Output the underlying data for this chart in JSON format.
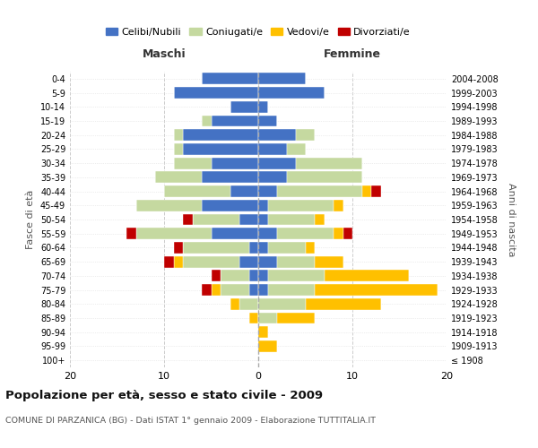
{
  "age_groups": [
    "100+",
    "95-99",
    "90-94",
    "85-89",
    "80-84",
    "75-79",
    "70-74",
    "65-69",
    "60-64",
    "55-59",
    "50-54",
    "45-49",
    "40-44",
    "35-39",
    "30-34",
    "25-29",
    "20-24",
    "15-19",
    "10-14",
    "5-9",
    "0-4"
  ],
  "birth_years": [
    "≤ 1908",
    "1909-1913",
    "1914-1918",
    "1919-1923",
    "1924-1928",
    "1929-1933",
    "1934-1938",
    "1939-1943",
    "1944-1948",
    "1949-1953",
    "1954-1958",
    "1959-1963",
    "1964-1968",
    "1969-1973",
    "1974-1978",
    "1979-1983",
    "1984-1988",
    "1989-1993",
    "1994-1998",
    "1999-2003",
    "2004-2008"
  ],
  "colors": {
    "celibi": "#4472c4",
    "coniugati": "#c5d9a0",
    "vedovi": "#ffc000",
    "divorziati": "#c00000"
  },
  "maschi": {
    "celibi": [
      0,
      0,
      0,
      0,
      0,
      1,
      1,
      2,
      1,
      5,
      2,
      6,
      3,
      6,
      5,
      8,
      8,
      5,
      3,
      9,
      6
    ],
    "coniugati": [
      0,
      0,
      0,
      0,
      2,
      3,
      3,
      6,
      7,
      8,
      5,
      7,
      7,
      5,
      4,
      1,
      1,
      1,
      0,
      0,
      0
    ],
    "vedovi": [
      0,
      0,
      0,
      1,
      1,
      1,
      0,
      1,
      0,
      0,
      0,
      0,
      0,
      0,
      0,
      0,
      0,
      0,
      0,
      0,
      0
    ],
    "divorziati": [
      0,
      0,
      0,
      0,
      0,
      1,
      1,
      1,
      1,
      1,
      1,
      0,
      0,
      0,
      0,
      0,
      0,
      0,
      0,
      0,
      0
    ]
  },
  "femmine": {
    "nubili": [
      0,
      0,
      0,
      0,
      0,
      1,
      1,
      2,
      1,
      2,
      1,
      1,
      2,
      3,
      4,
      3,
      4,
      2,
      1,
      7,
      5
    ],
    "coniugate": [
      0,
      0,
      0,
      2,
      5,
      5,
      6,
      4,
      4,
      6,
      5,
      7,
      9,
      8,
      7,
      2,
      2,
      0,
      0,
      0,
      0
    ],
    "vedove": [
      0,
      2,
      1,
      4,
      8,
      13,
      9,
      3,
      1,
      1,
      1,
      1,
      1,
      0,
      0,
      0,
      0,
      0,
      0,
      0,
      0
    ],
    "divorziate": [
      0,
      0,
      0,
      0,
      0,
      0,
      0,
      0,
      0,
      1,
      0,
      0,
      1,
      0,
      0,
      0,
      0,
      0,
      0,
      0,
      0
    ]
  },
  "title": "Popolazione per età, sesso e stato civile - 2009",
  "subtitle": "COMUNE DI PARZANICA (BG) - Dati ISTAT 1° gennaio 2009 - Elaborazione TUTTITALIA.IT",
  "xlabel_left": "Maschi",
  "xlabel_right": "Femmine",
  "ylabel_left": "Fasce di età",
  "ylabel_right": "Anni di nascita",
  "xlim": 20,
  "legend_labels": [
    "Celibi/Nubili",
    "Coniugati/e",
    "Vedovi/e",
    "Divorziati/e"
  ]
}
